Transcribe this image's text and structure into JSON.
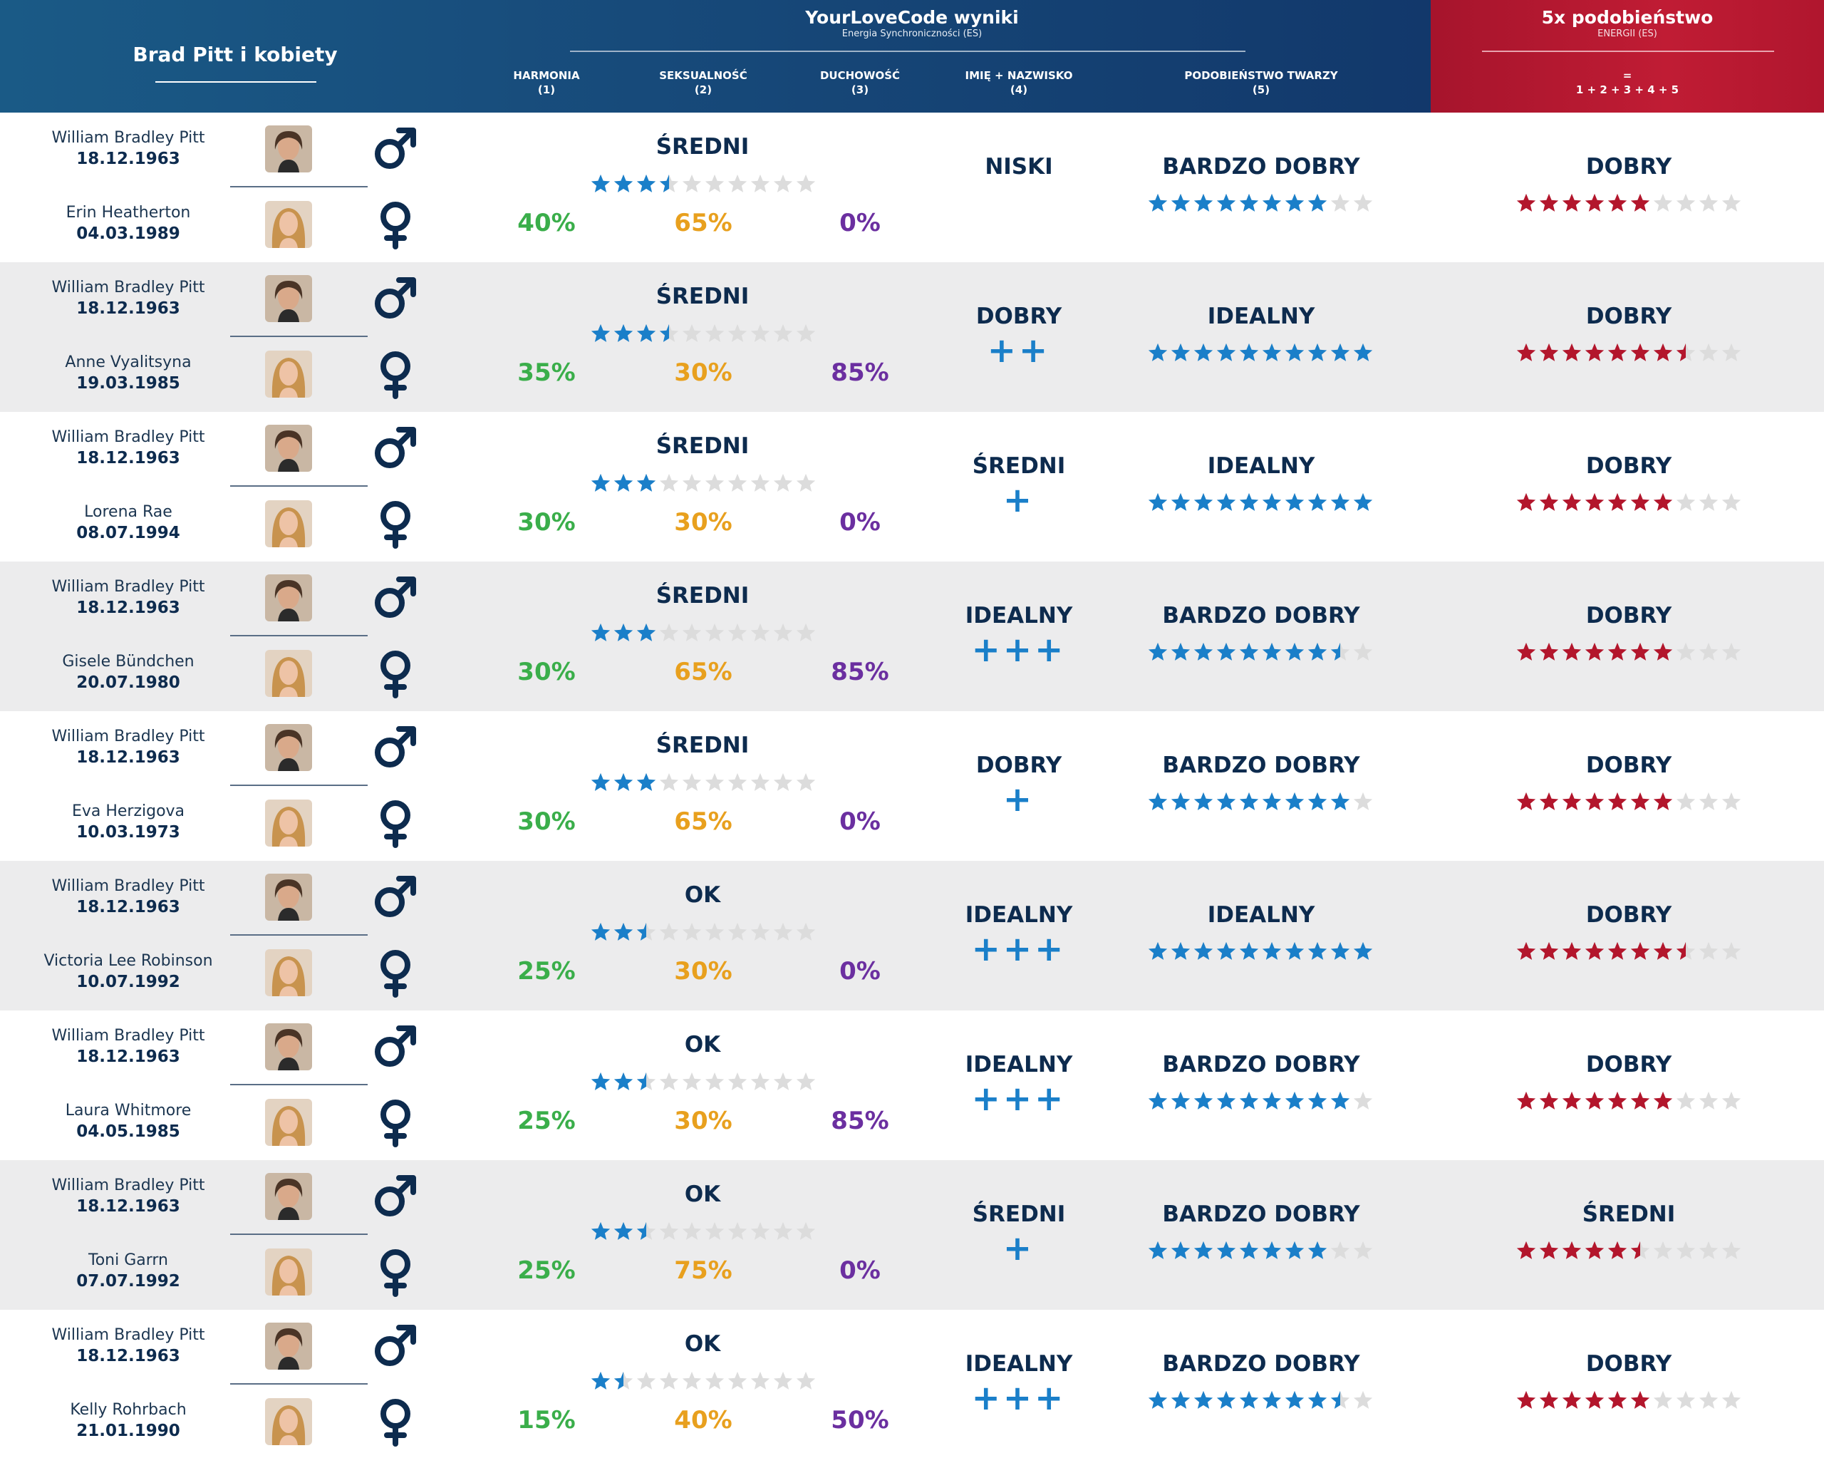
{
  "header": {
    "left_title": "Brad Pitt i kobiety",
    "main_title": "YourLoveCode wyniki",
    "main_subtitle": "Energia Synchroniczności (ES)",
    "columns": [
      {
        "label": "HARMONIA",
        "num": "(1)"
      },
      {
        "label": "SEKSUALNOŚĆ",
        "num": "(2)"
      },
      {
        "label": "DUCHOWOŚĆ",
        "num": "(3)"
      },
      {
        "label": "IMIĘ + NAZWISKO",
        "num": "(4)"
      },
      {
        "label": "PODOBIEŃSTWO TWARZY",
        "num": "(5)"
      }
    ],
    "red_title": "5x podobieństwo",
    "red_subtitle": "ENERGII (ES)",
    "red_formula_eq": "=",
    "red_formula": "1 + 2 + 3 + 4 + 5"
  },
  "colors": {
    "header_blue": "#174a7a",
    "header_red": "#c01c34",
    "harmonia": "#3aae4a",
    "seksualnosc": "#e8a01e",
    "duchowosc": "#6b2fa0",
    "star_blue": "#1a7fc9",
    "star_red": "#b3162c",
    "star_empty": "#dcdcdc",
    "row_alt": "#ececed"
  },
  "icons": {
    "male": "male-symbol-icon",
    "female": "female-symbol-icon",
    "star": "star-icon"
  },
  "rows": [
    {
      "man_name": "William Bradley Pitt",
      "man_date": "18.12.1963",
      "woman_name": "Erin Heatherton",
      "woman_date": "04.03.1989",
      "harmonia": "40%",
      "seksualnosc": "65%",
      "duchowosc": "0%",
      "es_label": "ŚREDNI",
      "es_stars": 3.5,
      "name_label": "NISKI",
      "name_plus": "",
      "face_label": "BARDZO DOBRY",
      "face_stars": 8,
      "sum_label": "DOBRY",
      "sum_stars": 6
    },
    {
      "man_name": "William Bradley Pitt",
      "man_date": "18.12.1963",
      "woman_name": "Anne Vyalitsyna",
      "woman_date": "19.03.1985",
      "harmonia": "35%",
      "seksualnosc": "30%",
      "duchowosc": "85%",
      "es_label": "ŚREDNI",
      "es_stars": 3.5,
      "name_label": "DOBRY",
      "name_plus": "++",
      "face_label": "IDEALNY",
      "face_stars": 10,
      "sum_label": "DOBRY",
      "sum_stars": 7.5
    },
    {
      "man_name": "William Bradley Pitt",
      "man_date": "18.12.1963",
      "woman_name": "Lorena Rae",
      "woman_date": "08.07.1994",
      "harmonia": "30%",
      "seksualnosc": "30%",
      "duchowosc": "0%",
      "es_label": "ŚREDNI",
      "es_stars": 3,
      "name_label": "ŚREDNI",
      "name_plus": "+",
      "face_label": "IDEALNY",
      "face_stars": 10,
      "sum_label": "DOBRY",
      "sum_stars": 7
    },
    {
      "man_name": "William Bradley Pitt",
      "man_date": "18.12.1963",
      "woman_name": "Gisele Bündchen",
      "woman_date": "20.07.1980",
      "harmonia": "30%",
      "seksualnosc": "65%",
      "duchowosc": "85%",
      "es_label": "ŚREDNI",
      "es_stars": 3,
      "name_label": "IDEALNY",
      "name_plus": "+++",
      "face_label": "BARDZO DOBRY",
      "face_stars": 8.5,
      "sum_label": "DOBRY",
      "sum_stars": 7
    },
    {
      "man_name": "William Bradley Pitt",
      "man_date": "18.12.1963",
      "woman_name": "Eva Herzigova",
      "woman_date": "10.03.1973",
      "harmonia": "30%",
      "seksualnosc": "65%",
      "duchowosc": "0%",
      "es_label": "ŚREDNI",
      "es_stars": 3,
      "name_label": "DOBRY",
      "name_plus": "+",
      "face_label": "BARDZO DOBRY",
      "face_stars": 9,
      "sum_label": "DOBRY",
      "sum_stars": 7
    },
    {
      "man_name": "William Bradley Pitt",
      "man_date": "18.12.1963",
      "woman_name": "Victoria Lee Robinson",
      "woman_date": "10.07.1992",
      "harmonia": "25%",
      "seksualnosc": "30%",
      "duchowosc": "0%",
      "es_label": "OK",
      "es_stars": 2.5,
      "name_label": "IDEALNY",
      "name_plus": "+++",
      "face_label": "IDEALNY",
      "face_stars": 10,
      "sum_label": "DOBRY",
      "sum_stars": 7.5
    },
    {
      "man_name": "William Bradley Pitt",
      "man_date": "18.12.1963",
      "woman_name": "Laura Whitmore",
      "woman_date": "04.05.1985",
      "harmonia": "25%",
      "seksualnosc": "30%",
      "duchowosc": "85%",
      "es_label": "OK",
      "es_stars": 2.5,
      "name_label": "IDEALNY",
      "name_plus": "+++",
      "face_label": "BARDZO DOBRY",
      "face_stars": 9,
      "sum_label": "DOBRY",
      "sum_stars": 7
    },
    {
      "man_name": "William Bradley Pitt",
      "man_date": "18.12.1963",
      "woman_name": "Toni Garrn",
      "woman_date": "07.07.1992",
      "harmonia": "25%",
      "seksualnosc": "75%",
      "duchowosc": "0%",
      "es_label": "OK",
      "es_stars": 2.5,
      "name_label": "ŚREDNI",
      "name_plus": "+",
      "face_label": "BARDZO DOBRY",
      "face_stars": 8,
      "sum_label": "ŚREDNI",
      "sum_stars": 5.5
    },
    {
      "man_name": "William Bradley Pitt",
      "man_date": "18.12.1963",
      "woman_name": "Kelly Rohrbach",
      "woman_date": "21.01.1990",
      "harmonia": "15%",
      "seksualnosc": "40%",
      "duchowosc": "50%",
      "es_label": "OK",
      "es_stars": 1.5,
      "name_label": "IDEALNY",
      "name_plus": "+++",
      "face_label": "BARDZO DOBRY",
      "face_stars": 8.5,
      "sum_label": "DOBRY",
      "sum_stars": 6
    }
  ]
}
